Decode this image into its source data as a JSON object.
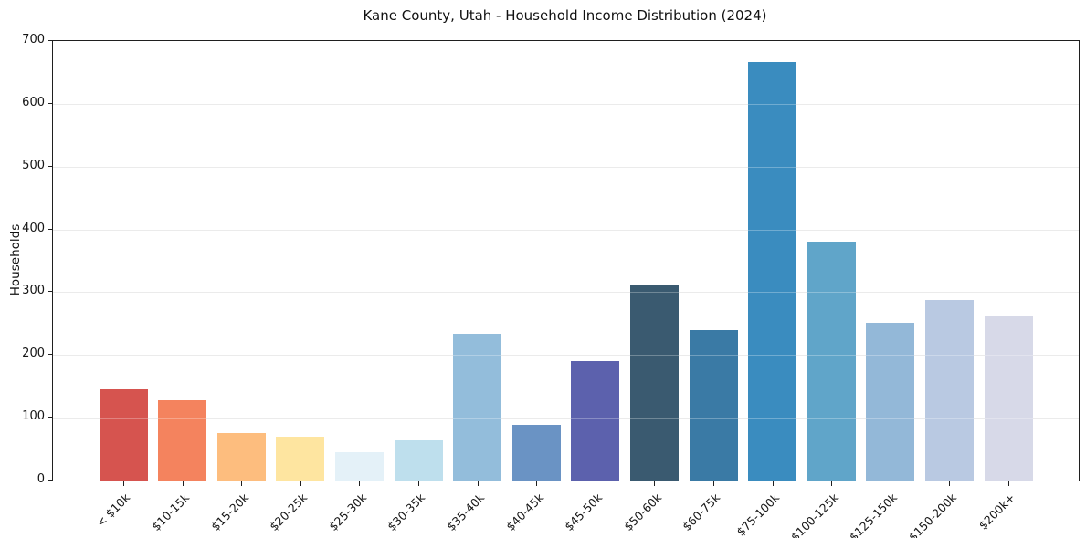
{
  "title": "Kane County, Utah - Household Income Distribution (2024)",
  "chart_data": {
    "type": "bar",
    "title": "Kane County, Utah - Household Income Distribution (2024)",
    "xlabel": "",
    "ylabel": "Households",
    "ylim": [
      0,
      700
    ],
    "ytick_step": 100,
    "ytick_labels": [
      "0",
      "100",
      "200",
      "300",
      "400",
      "500",
      "600",
      "700"
    ],
    "grid": true,
    "legend": "none",
    "categories": [
      "< $10k",
      "$10-15k",
      "$15-20k",
      "$20-25k",
      "$25-30k",
      "$30-35k",
      "$35-40k",
      "$40-45k",
      "$45-50k",
      "$50-60k",
      "$60-75k",
      "$75-100k",
      "$100-125k",
      "$125-150k",
      "$150-200k",
      "$200k+"
    ],
    "values": [
      145,
      128,
      75,
      70,
      45,
      64,
      234,
      88,
      190,
      312,
      239,
      667,
      380,
      251,
      287,
      263
    ],
    "bar_colors": [
      "#d6544f",
      "#f4835e",
      "#fdbd7e",
      "#fee5a0",
      "#e4f1f8",
      "#bedfed",
      "#93bddb",
      "#6a93c4",
      "#5c61ad",
      "#3a5a70",
      "#3a7aa5",
      "#3a8cbf",
      "#60a5c9",
      "#93b8d8",
      "#b9c9e2",
      "#d7d9e8"
    ],
    "axis_color": "#1f1f1f",
    "grid_color": "#e3e3e3",
    "background": "#ffffff"
  }
}
